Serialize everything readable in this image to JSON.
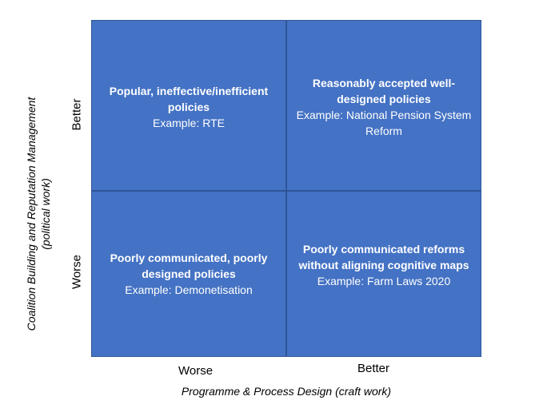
{
  "quadrants": {
    "top_left": {
      "heading": "Popular, ineffective/inefficient policies",
      "example": "Example: RTE"
    },
    "top_right": {
      "heading": "Reasonably accepted well-designed policies",
      "example": "Example: National Pension System Reform"
    },
    "bottom_left": {
      "heading": "Poorly communicated, poorly designed policies",
      "example": "Example: Demonetisation"
    },
    "bottom_right": {
      "heading": "Poorly communicated reforms without aligning cognitive maps",
      "example": "Example: Farm Laws 2020"
    }
  },
  "y_axis": {
    "title_line1": "Coalition Building and Reputation Management",
    "title_line2": "(political work)",
    "tick_top": "Better",
    "tick_bottom": "Worse"
  },
  "x_axis": {
    "title": "Programme & Process Design (craft work)",
    "tick_left": "Worse",
    "tick_right": "Better"
  },
  "colors": {
    "quadrant_fill": "#4472c4",
    "quadrant_border": "#2f5597",
    "quadrant_text": "#ffffff"
  }
}
